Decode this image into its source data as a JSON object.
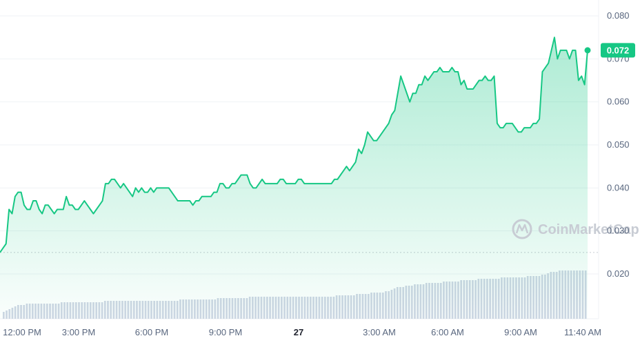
{
  "watermark": {
    "text": "CoinMarketCap",
    "icon": "coinmarketcap-logo"
  },
  "colors": {
    "line": "#16c784",
    "fill_top": "#16c784",
    "grid": "#eff2f5",
    "baseline": "#c8ccd4",
    "volume": "#cfd6e4",
    "badge": "#16c784"
  },
  "current_price_label": "0.072",
  "chart_data": {
    "type": "area",
    "y_axis": {
      "min": 0.01,
      "max": 0.082,
      "ticks": [
        "0.080",
        "0.070",
        "0.060",
        "0.050",
        "0.040",
        "0.030",
        "0.020"
      ],
      "position": "right"
    },
    "x_axis": {
      "tick_labels": [
        "12:00 PM",
        "3:00 PM",
        "6:00 PM",
        "9:00 PM",
        "27",
        "3:00 AM",
        "6:00 AM",
        "9:00 AM",
        "11:40 AM"
      ],
      "bold_labels": [
        "27"
      ]
    },
    "reference_line": 0.025,
    "grid": true,
    "series": [
      {
        "values": [
          0.025,
          0.026,
          0.027,
          0.035,
          0.034,
          0.038,
          0.039,
          0.039,
          0.036,
          0.035,
          0.035,
          0.037,
          0.037,
          0.035,
          0.034,
          0.036,
          0.036,
          0.035,
          0.034,
          0.035,
          0.035,
          0.035,
          0.038,
          0.036,
          0.036,
          0.035,
          0.035,
          0.036,
          0.037,
          0.036,
          0.035,
          0.034,
          0.035,
          0.036,
          0.037,
          0.041,
          0.041,
          0.042,
          0.042,
          0.041,
          0.04,
          0.041,
          0.04,
          0.039,
          0.038,
          0.04,
          0.039,
          0.04,
          0.039,
          0.039,
          0.04,
          0.039,
          0.04,
          0.04,
          0.04,
          0.04,
          0.04,
          0.039,
          0.038,
          0.037,
          0.037,
          0.037,
          0.037,
          0.037,
          0.036,
          0.037,
          0.037,
          0.038,
          0.038,
          0.038,
          0.038,
          0.039,
          0.039,
          0.041,
          0.041,
          0.04,
          0.04,
          0.041,
          0.041,
          0.042,
          0.043,
          0.043,
          0.043,
          0.041,
          0.04,
          0.04,
          0.041,
          0.042,
          0.041,
          0.041,
          0.041,
          0.041,
          0.041,
          0.042,
          0.042,
          0.041,
          0.041,
          0.041,
          0.041,
          0.042,
          0.042,
          0.041,
          0.041,
          0.041,
          0.041,
          0.041,
          0.041,
          0.041,
          0.041,
          0.041,
          0.041,
          0.042,
          0.042,
          0.043,
          0.044,
          0.045,
          0.044,
          0.045,
          0.046,
          0.049,
          0.048,
          0.05,
          0.053,
          0.052,
          0.051,
          0.051,
          0.052,
          0.053,
          0.054,
          0.055,
          0.057,
          0.058,
          0.062,
          0.066,
          0.064,
          0.062,
          0.06,
          0.062,
          0.062,
          0.064,
          0.064,
          0.066,
          0.065,
          0.066,
          0.067,
          0.067,
          0.068,
          0.067,
          0.067,
          0.067,
          0.068,
          0.067,
          0.067,
          0.064,
          0.065,
          0.063,
          0.063,
          0.063,
          0.064,
          0.065,
          0.065,
          0.066,
          0.065,
          0.065,
          0.066,
          0.055,
          0.054,
          0.054,
          0.055,
          0.055,
          0.055,
          0.054,
          0.053,
          0.053,
          0.054,
          0.054,
          0.054,
          0.055,
          0.055,
          0.056,
          0.067,
          0.068,
          0.069,
          0.072,
          0.075,
          0.07,
          0.072,
          0.072,
          0.072,
          0.07,
          0.072,
          0.072,
          0.065,
          0.066,
          0.064,
          0.072
        ]
      }
    ],
    "volume": {
      "values": [
        0.05,
        0.06,
        0.07,
        0.08,
        0.09,
        0.1,
        0.1,
        0.1,
        0.11,
        0.11,
        0.11,
        0.11,
        0.11,
        0.11,
        0.11,
        0.11,
        0.11,
        0.11,
        0.11,
        0.11,
        0.12,
        0.12,
        0.12,
        0.12,
        0.12,
        0.12,
        0.12,
        0.12,
        0.12,
        0.12,
        0.12,
        0.12,
        0.12,
        0.12,
        0.12,
        0.13,
        0.13,
        0.13,
        0.13,
        0.13,
        0.13,
        0.13,
        0.13,
        0.13,
        0.13,
        0.13,
        0.13,
        0.13,
        0.13,
        0.13,
        0.13,
        0.13,
        0.13,
        0.13,
        0.13,
        0.13,
        0.13,
        0.13,
        0.13,
        0.13,
        0.13,
        0.14,
        0.14,
        0.14,
        0.14,
        0.14,
        0.14,
        0.14,
        0.14,
        0.14,
        0.14,
        0.14,
        0.14,
        0.14,
        0.15,
        0.15,
        0.15,
        0.15,
        0.15,
        0.15,
        0.15,
        0.15,
        0.15,
        0.15,
        0.15,
        0.16,
        0.16,
        0.16,
        0.16,
        0.16,
        0.16,
        0.16,
        0.16,
        0.16,
        0.16,
        0.16,
        0.16,
        0.16,
        0.16,
        0.16,
        0.16,
        0.16,
        0.16,
        0.16,
        0.16,
        0.16,
        0.16,
        0.16,
        0.16,
        0.16,
        0.16,
        0.16,
        0.16,
        0.16,
        0.16,
        0.17,
        0.17,
        0.17,
        0.17,
        0.17,
        0.17,
        0.17,
        0.18,
        0.18,
        0.18,
        0.18,
        0.18,
        0.19,
        0.19,
        0.19,
        0.19,
        0.19,
        0.2,
        0.2,
        0.21,
        0.22,
        0.23,
        0.23,
        0.23,
        0.24,
        0.24,
        0.24,
        0.25,
        0.25,
        0.25,
        0.25,
        0.26,
        0.26,
        0.26,
        0.26,
        0.26,
        0.26,
        0.27,
        0.27,
        0.27,
        0.27,
        0.27,
        0.27,
        0.28,
        0.28,
        0.28,
        0.28,
        0.28,
        0.28,
        0.29,
        0.29,
        0.29,
        0.29,
        0.29,
        0.29,
        0.29,
        0.29,
        0.3,
        0.3,
        0.3,
        0.3,
        0.3,
        0.3,
        0.3,
        0.3,
        0.3,
        0.31,
        0.31,
        0.31,
        0.31,
        0.31,
        0.32,
        0.32,
        0.33,
        0.34,
        0.34,
        0.34,
        0.35,
        0.35,
        0.35,
        0.35,
        0.35,
        0.35,
        0.35,
        0.35,
        0.35,
        0.35
      ]
    }
  }
}
